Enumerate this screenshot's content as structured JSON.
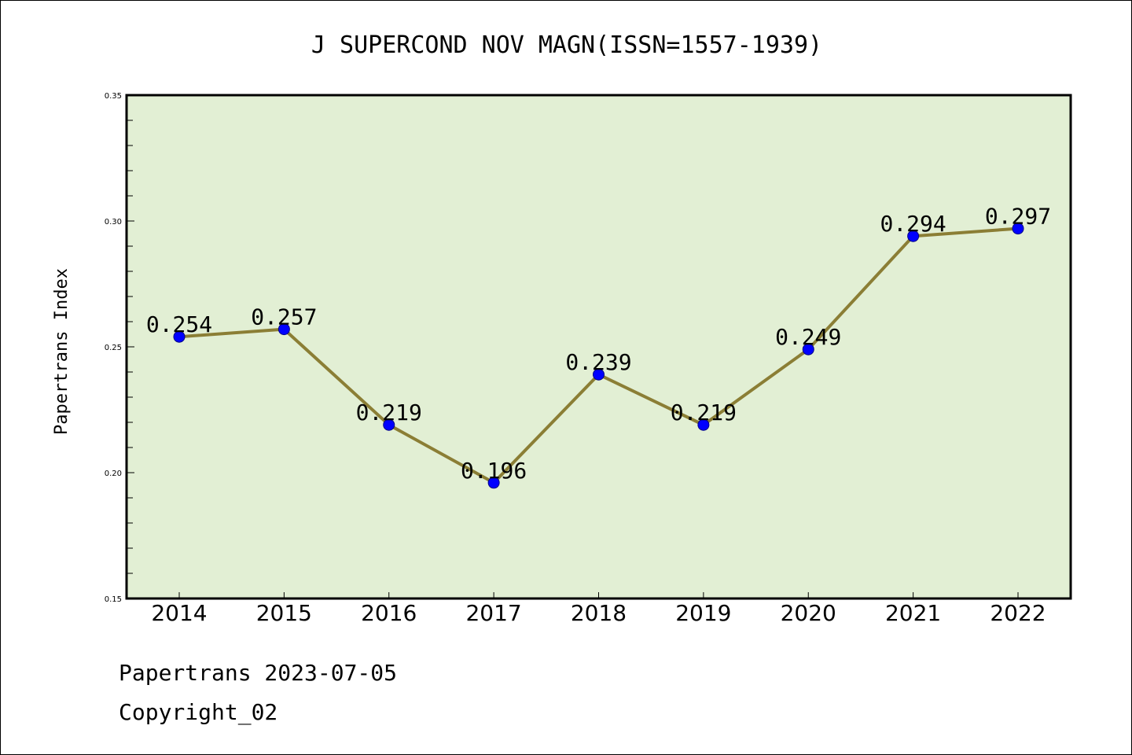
{
  "chart_data": {
    "type": "line",
    "title": "J SUPERCOND NOV MAGN(ISSN=1557-1939)",
    "xlabel": "",
    "ylabel": "Papertrans Index",
    "categories": [
      "2014",
      "2015",
      "2016",
      "2017",
      "2018",
      "2019",
      "2020",
      "2021",
      "2022"
    ],
    "values": [
      0.254,
      0.257,
      0.219,
      0.196,
      0.239,
      0.219,
      0.249,
      0.294,
      0.297
    ],
    "data_labels": [
      "0.254",
      "0.257",
      "0.219",
      "0.196",
      "0.239",
      "0.219",
      "0.249",
      "0.294",
      "0.297"
    ],
    "ylim": [
      0.15,
      0.35
    ],
    "yticks": [
      0.15,
      0.2,
      0.25,
      0.3,
      0.35
    ],
    "ytick_labels": [
      "0.15",
      "0.20",
      "0.25",
      "0.30",
      "0.35"
    ],
    "grid": false,
    "colors": {
      "plot_background": "#e2efd4",
      "line": "#8b7e35",
      "marker": "#0000ff"
    }
  },
  "footer": {
    "line1": "Papertrans 2023-07-05",
    "line2": "Copyright_02"
  }
}
